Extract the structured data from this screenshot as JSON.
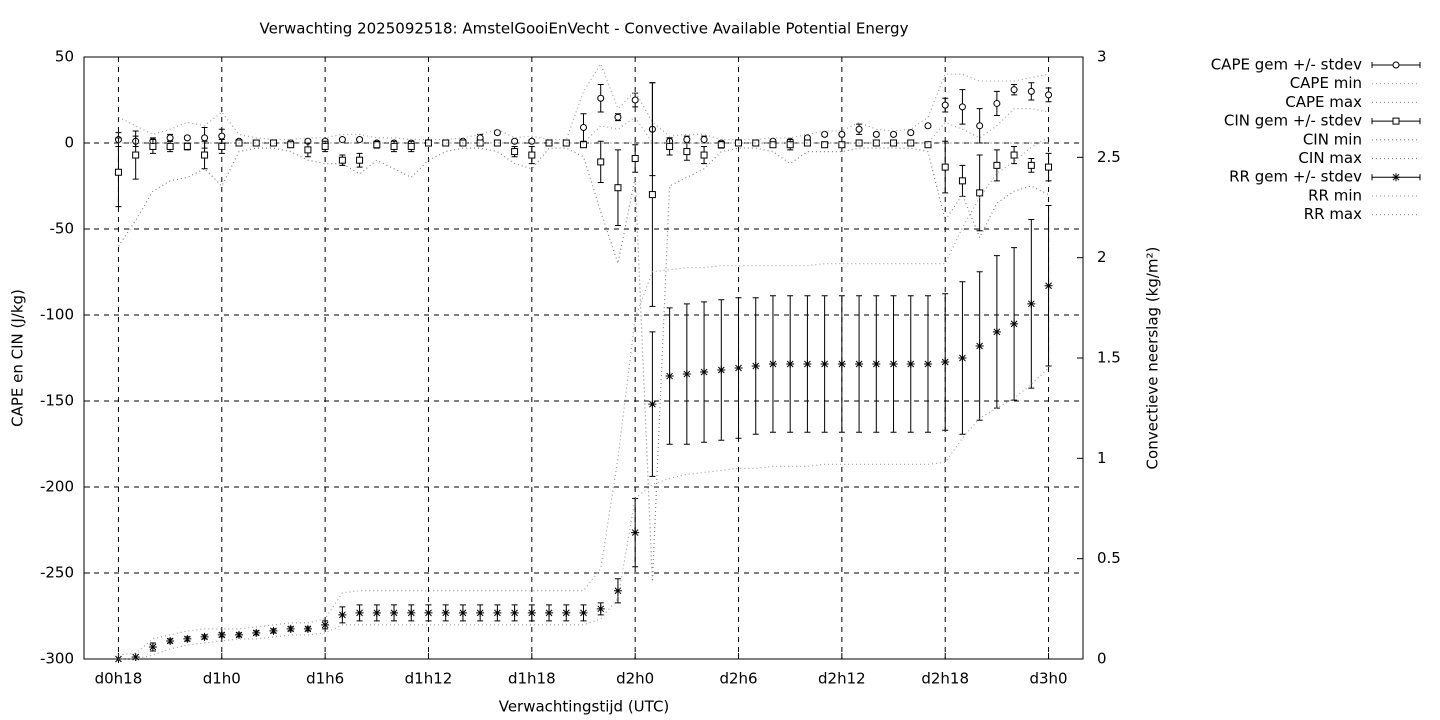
{
  "chart_data": {
    "type": "errorbar-line",
    "title": "Verwachting 2025092518: AmstelGooiEnVecht - Convective Available Potential Energy",
    "x_label": "Verwachtingstijd (UTC)",
    "y_label": "CAPE en CIN (J/kg)",
    "y2_label": "Convectieve neerslag (kg/m²)",
    "x": [
      18,
      19,
      20,
      21,
      22,
      23,
      24,
      25,
      26,
      27,
      28,
      29,
      30,
      31,
      32,
      33,
      34,
      35,
      36,
      37,
      38,
      39,
      40,
      41,
      42,
      43,
      44,
      45,
      46,
      47,
      48,
      49,
      50,
      51,
      52,
      53,
      54,
      55,
      56,
      57,
      58,
      59,
      60,
      61,
      62,
      63,
      64,
      65,
      66,
      67,
      68,
      69,
      70,
      71,
      72
    ],
    "xlim": [
      16,
      74
    ],
    "xticks": [
      {
        "value": 18,
        "label": "d0h18"
      },
      {
        "value": 24,
        "label": "d1h0"
      },
      {
        "value": 30,
        "label": "d1h6"
      },
      {
        "value": 36,
        "label": "d1h12"
      },
      {
        "value": 42,
        "label": "d1h18"
      },
      {
        "value": 48,
        "label": "d2h0"
      },
      {
        "value": 54,
        "label": "d2h6"
      },
      {
        "value": 60,
        "label": "d2h12"
      },
      {
        "value": 66,
        "label": "d2h18"
      },
      {
        "value": 72,
        "label": "d3h0"
      }
    ],
    "ylim": [
      -300,
      50
    ],
    "yticks": [
      50,
      0,
      -50,
      -100,
      -150,
      -200,
      -250,
      -300
    ],
    "y2lim": [
      0,
      3
    ],
    "y2ticks": [
      0,
      0.5,
      1,
      1.5,
      2,
      2.5,
      3
    ],
    "grid": true,
    "legend": "outside-right",
    "series": [
      {
        "name": "CAPE gem +/- stdev",
        "color": "#000000",
        "marker": "circle",
        "values": [
          2,
          1,
          1,
          3,
          3,
          3,
          4,
          1,
          0,
          0,
          0,
          1,
          1,
          2,
          2,
          0,
          0,
          0,
          0,
          0,
          1,
          3,
          6,
          1,
          1,
          0,
          0,
          9,
          26,
          15,
          25,
          8,
          1,
          2,
          2,
          0,
          0,
          0,
          1,
          1,
          3,
          5,
          5,
          8,
          5,
          5,
          6,
          10,
          22,
          21,
          10,
          23,
          31,
          30,
          28
        ],
        "errors": [
          4,
          3,
          2,
          2,
          1,
          6,
          4,
          1,
          1,
          1,
          1,
          1,
          1,
          1,
          1,
          1,
          1,
          1,
          1,
          1,
          1,
          2,
          1,
          1,
          1,
          1,
          1,
          8,
          8,
          2,
          4,
          27,
          2,
          2,
          2,
          1,
          1,
          1,
          1,
          1,
          1,
          1,
          1,
          3,
          1,
          1,
          1,
          1,
          4,
          10,
          10,
          7,
          3,
          5,
          4
        ]
      },
      {
        "name": "CAPE min",
        "color": "#a0a0a0",
        "dash": "dotted",
        "values": [
          0,
          0,
          0,
          0,
          0,
          0,
          0,
          0,
          0,
          0,
          0,
          0,
          0,
          0,
          0,
          0,
          0,
          0,
          0,
          0,
          0,
          0,
          0,
          0,
          0,
          0,
          0,
          0,
          10,
          8,
          15,
          0,
          0,
          0,
          0,
          0,
          0,
          0,
          0,
          0,
          0,
          0,
          0,
          0,
          0,
          0,
          0,
          0,
          12,
          8,
          3,
          10,
          20,
          20,
          18
        ]
      },
      {
        "name": "CAPE max",
        "color": "#a0a0a0",
        "dash": "dotted",
        "values": [
          15,
          10,
          5,
          8,
          12,
          10,
          18,
          5,
          3,
          2,
          2,
          3,
          3,
          5,
          5,
          3,
          3,
          2,
          2,
          2,
          3,
          5,
          8,
          3,
          4,
          2,
          2,
          30,
          46,
          20,
          30,
          12,
          4,
          5,
          5,
          2,
          2,
          2,
          3,
          3,
          5,
          7,
          7,
          12,
          8,
          7,
          8,
          15,
          40,
          40,
          36,
          36,
          36,
          38,
          40
        ]
      },
      {
        "name": "CIN gem +/- stdev",
        "color": "#000000",
        "marker": "square",
        "values": [
          -17,
          -7,
          -2,
          -2,
          -2,
          -7,
          -2,
          0,
          0,
          0,
          -1,
          -4,
          -2,
          -10,
          -10,
          -1,
          -2,
          -2,
          0,
          0,
          0,
          0,
          0,
          -5,
          -7,
          0,
          0,
          -1,
          -11,
          -26,
          -9,
          -30,
          -2,
          -5,
          -7,
          -1,
          0,
          0,
          -1,
          -1,
          0,
          -1,
          -1,
          0,
          0,
          0,
          0,
          -1,
          -14,
          -22,
          -29,
          -13,
          -7,
          -13,
          -14
        ],
        "errors": [
          20,
          14,
          4,
          3,
          2,
          8,
          4,
          1,
          1,
          1,
          1,
          4,
          3,
          3,
          4,
          2,
          3,
          3,
          1,
          1,
          1,
          1,
          1,
          3,
          5,
          1,
          1,
          1,
          12,
          22,
          8,
          65,
          5,
          5,
          5,
          2,
          1,
          1,
          1,
          3,
          1,
          1,
          1,
          1,
          1,
          1,
          1,
          1,
          15,
          9,
          22,
          9,
          5,
          4,
          8
        ]
      },
      {
        "name": "CIN min",
        "color": "#808080",
        "dash": "dotted",
        "values": [
          -60,
          -45,
          -28,
          -22,
          -20,
          -15,
          -25,
          -5,
          -3,
          -3,
          -5,
          -10,
          -12,
          -12,
          -18,
          -10,
          -15,
          -20,
          -10,
          -5,
          -3,
          -3,
          -5,
          -12,
          -15,
          -3,
          -3,
          -8,
          -40,
          -70,
          -20,
          -255,
          -25,
          -20,
          -15,
          -5,
          -3,
          -3,
          -5,
          -12,
          -5,
          -5,
          -5,
          -3,
          -3,
          -3,
          -3,
          -5,
          -45,
          -30,
          -55,
          -35,
          -28,
          -25,
          -30
        ]
      },
      {
        "name": "CIN max",
        "color": "#808080",
        "dash": "dotted",
        "values": [
          0,
          0,
          0,
          0,
          0,
          0,
          0,
          0,
          0,
          0,
          0,
          0,
          0,
          0,
          0,
          0,
          0,
          0,
          0,
          0,
          0,
          0,
          0,
          0,
          0,
          0,
          0,
          0,
          0,
          0,
          0,
          0,
          0,
          0,
          0,
          0,
          0,
          0,
          0,
          0,
          0,
          0,
          0,
          0,
          0,
          0,
          0,
          0,
          0,
          0,
          0,
          0,
          0,
          0,
          0
        ]
      },
      {
        "name": "RR gem +/- stdev",
        "color": "#000000",
        "marker": "star",
        "axis": "y2",
        "values": [
          0,
          0.01,
          0.06,
          0.09,
          0.1,
          0.11,
          0.12,
          0.12,
          0.13,
          0.14,
          0.15,
          0.15,
          0.17,
          0.22,
          0.23,
          0.23,
          0.23,
          0.23,
          0.23,
          0.23,
          0.23,
          0.23,
          0.23,
          0.23,
          0.23,
          0.23,
          0.23,
          0.23,
          0.25,
          0.34,
          0.63,
          1.27,
          1.41,
          1.42,
          1.43,
          1.44,
          1.45,
          1.46,
          1.47,
          1.47,
          1.47,
          1.47,
          1.47,
          1.47,
          1.47,
          1.47,
          1.47,
          1.47,
          1.48,
          1.5,
          1.56,
          1.63,
          1.67,
          1.77,
          1.86
        ],
        "errors": [
          0,
          0,
          0.02,
          0.01,
          0.01,
          0.01,
          0.01,
          0.01,
          0.01,
          0.01,
          0.01,
          0.01,
          0.02,
          0.04,
          0.04,
          0.04,
          0.04,
          0.04,
          0.04,
          0.04,
          0.04,
          0.04,
          0.04,
          0.04,
          0.04,
          0.04,
          0.04,
          0.04,
          0.03,
          0.06,
          0.17,
          0.36,
          0.34,
          0.35,
          0.35,
          0.35,
          0.35,
          0.34,
          0.34,
          0.34,
          0.34,
          0.34,
          0.34,
          0.34,
          0.34,
          0.34,
          0.34,
          0.34,
          0.34,
          0.38,
          0.37,
          0.38,
          0.38,
          0.42,
          0.4
        ]
      },
      {
        "name": "RR min",
        "color": "#a0a0a0",
        "dash": "dotted",
        "axis": "y2",
        "values": [
          0,
          0,
          0.02,
          0.05,
          0.07,
          0.08,
          0.09,
          0.1,
          0.1,
          0.11,
          0.12,
          0.12,
          0.13,
          0.17,
          0.17,
          0.17,
          0.17,
          0.17,
          0.17,
          0.17,
          0.17,
          0.17,
          0.17,
          0.17,
          0.17,
          0.17,
          0.17,
          0.17,
          0.2,
          0.3,
          0.8,
          0.87,
          0.9,
          0.92,
          0.93,
          0.94,
          0.95,
          0.95,
          0.96,
          0.96,
          0.96,
          0.97,
          0.97,
          0.97,
          0.97,
          0.97,
          0.97,
          0.97,
          0.98,
          1.1,
          1.2,
          1.25,
          1.3,
          1.37,
          1.45
        ]
      },
      {
        "name": "RR max",
        "color": "#a0a0a0",
        "dash": "dotted",
        "axis": "y2",
        "values": [
          0.02,
          0.03,
          0.1,
          0.12,
          0.14,
          0.15,
          0.15,
          0.15,
          0.16,
          0.17,
          0.18,
          0.18,
          0.2,
          0.33,
          0.34,
          0.34,
          0.34,
          0.34,
          0.34,
          0.34,
          0.34,
          0.34,
          0.34,
          0.34,
          0.34,
          0.34,
          0.34,
          0.34,
          0.45,
          1.0,
          1.7,
          1.93,
          1.94,
          1.95,
          1.95,
          1.96,
          1.96,
          1.96,
          1.96,
          1.96,
          1.96,
          1.97,
          1.97,
          1.97,
          1.97,
          1.97,
          1.97,
          1.97,
          1.97,
          2.15,
          2.3,
          2.42,
          2.48,
          2.55,
          2.6
        ]
      }
    ]
  }
}
